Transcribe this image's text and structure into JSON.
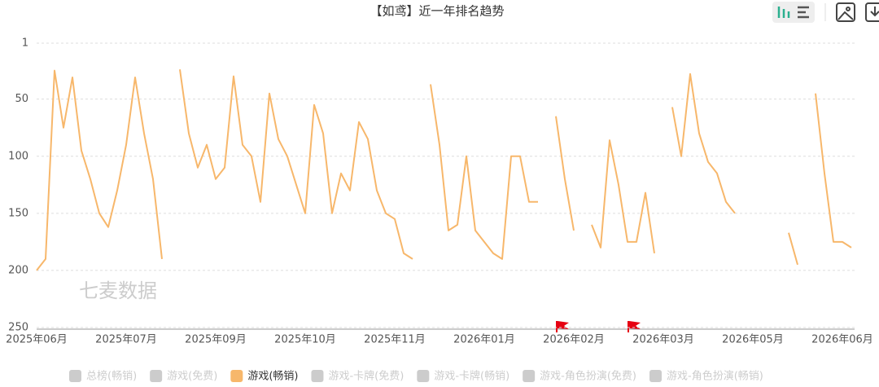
{
  "chart_data": {
    "type": "line",
    "title": "【如鸢】近一年排名趋势",
    "watermark": "七麦数据",
    "categories": [
      "2025年06月",
      null,
      null,
      null,
      null,
      null,
      null,
      null,
      null,
      null,
      "2025年07月",
      null,
      null,
      null,
      null,
      null,
      null,
      null,
      null,
      null,
      "2025年09月",
      null,
      null,
      null,
      null,
      null,
      null,
      null,
      null,
      null,
      "2025年10月",
      null,
      null,
      null,
      null,
      null,
      null,
      null,
      null,
      null,
      "2025年11月",
      null,
      null,
      null,
      null,
      null,
      null,
      null,
      null,
      null,
      "2026年01月",
      null,
      null,
      null,
      null,
      null,
      null,
      null,
      null,
      null,
      "2026年02月",
      null,
      null,
      null,
      null,
      null,
      null,
      null,
      null,
      null,
      "2026年03月",
      null,
      null,
      null,
      null,
      null,
      null,
      null,
      null,
      null,
      "2026年05月",
      null,
      null,
      null,
      null,
      null,
      null,
      null,
      null,
      null,
      "2026年06月",
      null
    ],
    "series": [
      {
        "name": "游戏(畅销)",
        "color": "#f7b76b",
        "values": [
          200,
          190,
          25,
          75,
          31,
          95,
          120,
          150,
          162,
          130,
          90,
          31,
          80,
          120,
          190,
          null,
          24,
          80,
          110,
          90,
          120,
          110,
          30,
          90,
          100,
          140,
          45,
          85,
          100,
          125,
          150,
          55,
          80,
          150,
          115,
          130,
          70,
          85,
          130,
          150,
          155,
          185,
          190,
          null,
          37,
          90,
          165,
          160,
          100,
          165,
          175,
          185,
          190,
          100,
          100,
          140,
          140,
          null,
          65,
          120,
          165,
          null,
          160,
          180,
          86,
          125,
          175,
          175,
          132,
          185,
          null,
          57,
          100,
          28,
          80,
          105,
          115,
          140,
          150,
          null,
          null,
          null,
          null,
          null,
          167,
          195,
          null,
          45,
          115,
          175,
          175,
          180
        ]
      }
    ],
    "hidden_series": [
      {
        "name": "总榜(畅销)"
      },
      {
        "name": "游戏(免费)"
      },
      {
        "name": "游戏-卡牌(免费)"
      },
      {
        "name": "游戏-卡牌(畅销)"
      },
      {
        "name": "游戏-角色扮演(免费)"
      },
      {
        "name": "游戏-角色扮演(畅销)"
      }
    ],
    "ylim": [
      1,
      250
    ],
    "y_inverted": true,
    "yticks": [
      1,
      50,
      100,
      150,
      200,
      250
    ],
    "grid": true
  }
}
